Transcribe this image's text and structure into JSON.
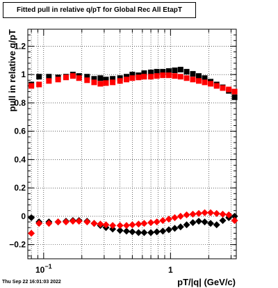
{
  "title": "Fitted pull in relative q/pT for Global Rec All EtapT",
  "timestamp": "Thu Sep 22 16:01:03 2022",
  "chart_data": {
    "type": "scatter",
    "title": "Fitted pull in relative q/pT for Global Rec All EtapT",
    "xlabel": "pT/|q| (GeV/c)",
    "ylabel": "pull in relative q/pT",
    "xscale": "log",
    "xlim": [
      0.075,
      3.3
    ],
    "ylim": [
      -0.3,
      1.32
    ],
    "x_tick_labels": [
      "10^-1",
      "1"
    ],
    "y_tick_labels": [
      "-0.2",
      "0",
      "0.2",
      "0.4",
      "0.6",
      "0.8",
      "1",
      "1.2"
    ],
    "y_ticks": [
      -0.2,
      0,
      0.2,
      0.4,
      0.6,
      0.8,
      1,
      1.2
    ],
    "grid": true,
    "colors": {
      "series_black": "#000000",
      "series_red": "#ff0000"
    },
    "series": [
      {
        "color": "#000000",
        "marker": "square",
        "x": [
          0.08,
          0.092,
          0.11,
          0.13,
          0.15,
          0.17,
          0.19,
          0.22,
          0.25,
          0.28,
          0.31,
          0.35,
          0.4,
          0.45,
          0.5,
          0.56,
          0.62,
          0.7,
          0.78,
          0.87,
          0.97,
          1.08,
          1.2,
          1.34,
          1.5,
          1.67,
          1.86,
          2.07,
          2.31,
          2.58,
          2.88,
          3.2
        ],
        "y": [
          0.93,
          0.985,
          0.985,
          0.98,
          0.985,
          1.0,
          0.99,
          0.985,
          0.97,
          0.975,
          0.965,
          0.97,
          0.975,
          0.985,
          1.0,
          0.995,
          1.01,
          1.015,
          1.02,
          1.02,
          1.025,
          1.03,
          1.035,
          1.02,
          1.005,
          0.99,
          0.975,
          0.95,
          0.93,
          0.91,
          0.885,
          0.84
        ]
      },
      {
        "color": "#ff0000",
        "marker": "square",
        "x": [
          0.08,
          0.092,
          0.11,
          0.13,
          0.15,
          0.17,
          0.19,
          0.22,
          0.25,
          0.28,
          0.31,
          0.35,
          0.4,
          0.45,
          0.5,
          0.56,
          0.62,
          0.7,
          0.78,
          0.87,
          0.97,
          1.08,
          1.2,
          1.34,
          1.5,
          1.67,
          1.86,
          2.07,
          2.31,
          2.58,
          2.88,
          3.2
        ],
        "y": [
          0.92,
          0.93,
          0.955,
          0.965,
          0.98,
          0.99,
          0.975,
          0.96,
          0.945,
          0.935,
          0.94,
          0.945,
          0.955,
          0.965,
          0.975,
          0.98,
          0.985,
          0.985,
          0.99,
          0.995,
          0.995,
          0.99,
          0.985,
          0.975,
          0.965,
          0.955,
          0.945,
          0.935,
          0.92,
          0.905,
          0.895,
          0.88
        ]
      },
      {
        "color": "#000000",
        "marker": "diamond",
        "x": [
          0.08,
          0.092,
          0.11,
          0.13,
          0.15,
          0.17,
          0.19,
          0.22,
          0.25,
          0.28,
          0.31,
          0.35,
          0.4,
          0.45,
          0.5,
          0.56,
          0.62,
          0.7,
          0.78,
          0.87,
          0.97,
          1.08,
          1.2,
          1.34,
          1.5,
          1.67,
          1.86,
          2.07,
          2.31,
          2.58,
          2.88,
          3.2
        ],
        "y": [
          -0.01,
          -0.04,
          -0.04,
          -0.04,
          -0.035,
          -0.03,
          -0.03,
          -0.035,
          -0.05,
          -0.065,
          -0.08,
          -0.09,
          -0.1,
          -0.105,
          -0.11,
          -0.115,
          -0.115,
          -0.115,
          -0.11,
          -0.105,
          -0.095,
          -0.085,
          -0.075,
          -0.06,
          -0.045,
          -0.035,
          -0.04,
          -0.05,
          -0.06,
          -0.03,
          -0.01,
          0.0
        ]
      },
      {
        "color": "#ff0000",
        "marker": "diamond",
        "x": [
          0.08,
          0.092,
          0.11,
          0.13,
          0.15,
          0.17,
          0.19,
          0.22,
          0.25,
          0.28,
          0.31,
          0.35,
          0.4,
          0.45,
          0.5,
          0.56,
          0.62,
          0.7,
          0.78,
          0.87,
          0.97,
          1.08,
          1.2,
          1.34,
          1.5,
          1.67,
          1.86,
          2.07,
          2.31,
          2.58,
          2.88,
          3.2
        ],
        "y": [
          -0.12,
          -0.05,
          -0.05,
          -0.04,
          -0.04,
          -0.035,
          -0.035,
          -0.04,
          -0.05,
          -0.055,
          -0.06,
          -0.065,
          -0.065,
          -0.065,
          -0.06,
          -0.055,
          -0.05,
          -0.045,
          -0.04,
          -0.03,
          -0.02,
          -0.01,
          0.0,
          0.01,
          0.015,
          0.02,
          0.025,
          0.025,
          0.02,
          0.015,
          0.01,
          -0.03
        ]
      }
    ]
  }
}
